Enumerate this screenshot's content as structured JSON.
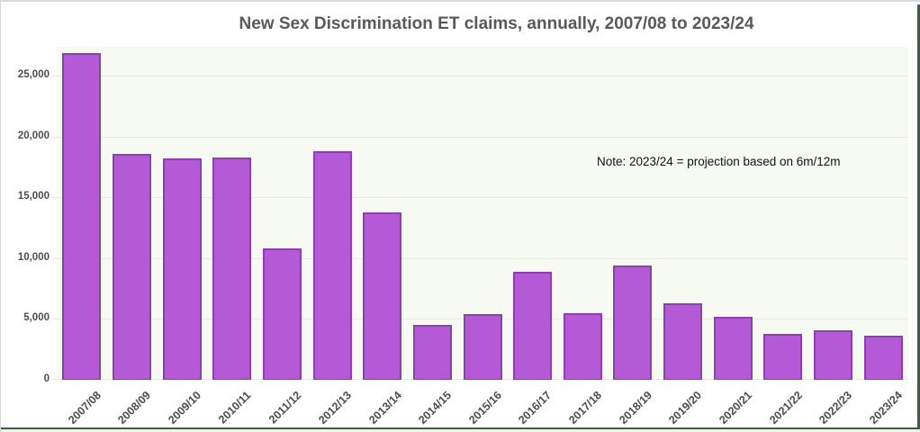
{
  "frame": {
    "top_border_color": "#d9d9d9",
    "green_edge_color": "#3e5c46",
    "bottom_strip_color": "#eef2ea"
  },
  "chart_data": {
    "type": "bar",
    "title": "New Sex Discrimination ET claims, annually, 2007/08 to 2023/24",
    "annotation": "Note: 2023/24 = projection based on 6m/12m",
    "categories": [
      "2007/08",
      "2008/09",
      "2009/10",
      "2010/11",
      "2011/12",
      "2012/13",
      "2013/14",
      "2014/15",
      "2015/16",
      "2016/17",
      "2017/18",
      "2018/19",
      "2019/20",
      "2020/21",
      "2021/22",
      "2022/23",
      "2023/24"
    ],
    "values": [
      26900,
      18600,
      18200,
      18300,
      10800,
      18800,
      13800,
      4500,
      5400,
      8900,
      5500,
      9400,
      6300,
      5200,
      3800,
      4100,
      3600
    ],
    "xlabel": "",
    "ylabel": "",
    "ylim": [
      0,
      27400
    ],
    "yticks": [
      0,
      5000,
      10000,
      15000,
      20000,
      25000
    ],
    "ytick_labels": [
      "0",
      "5,000",
      "10,000",
      "15,000",
      "20,000",
      "25,000"
    ],
    "grid": true,
    "legend_position": "none",
    "bar_color": "#b55ad6",
    "bar_border_color": "#8d3fae",
    "plot_bg": "#f6faf3",
    "gridline_color": "#e8e8e4",
    "axis_label_color": "#4d4d4d",
    "title_color": "#595959",
    "annotation_color": "#111111"
  }
}
